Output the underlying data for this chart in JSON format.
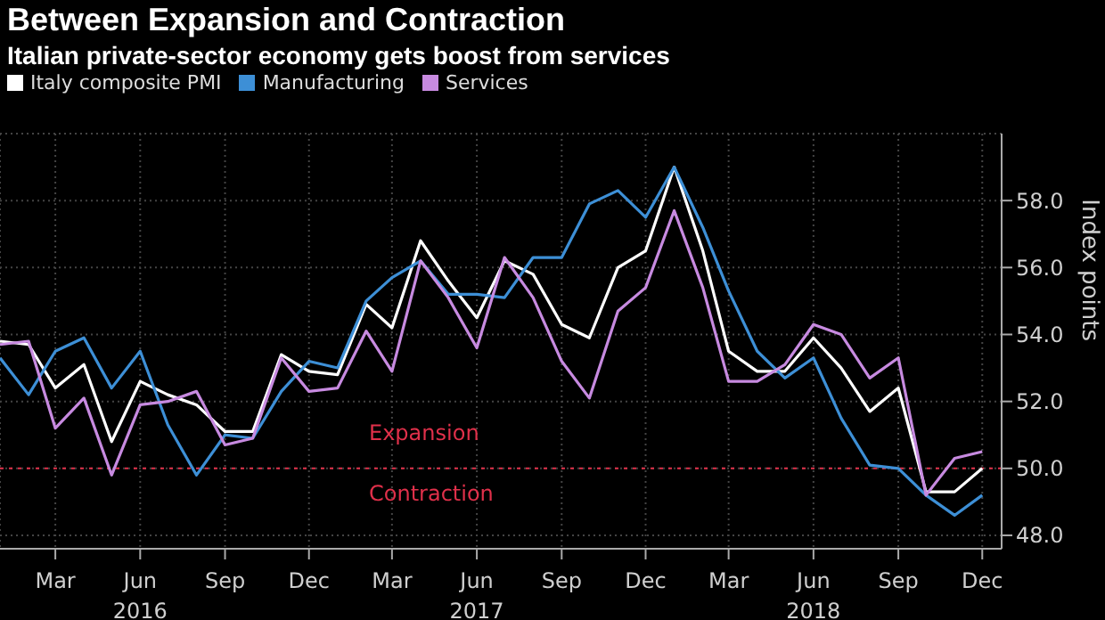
{
  "chart_data": {
    "type": "line",
    "title": "Between Expansion and Contraction",
    "subtitle": "Italian private-sector economy gets boost from services",
    "ylabel": "Index points",
    "x": [
      "2016-01",
      "2016-02",
      "2016-03",
      "2016-04",
      "2016-05",
      "2016-06",
      "2016-07",
      "2016-08",
      "2016-09",
      "2016-10",
      "2016-11",
      "2016-12",
      "2017-01",
      "2017-02",
      "2017-03",
      "2017-04",
      "2017-05",
      "2017-06",
      "2017-07",
      "2017-08",
      "2017-09",
      "2017-10",
      "2017-11",
      "2017-12",
      "2018-01",
      "2018-02",
      "2018-03",
      "2018-04",
      "2018-05",
      "2018-06",
      "2018-07",
      "2018-08",
      "2018-09",
      "2018-10",
      "2018-11",
      "2018-12"
    ],
    "series": [
      {
        "name": "Italy composite PMI",
        "color": "#ffffff",
        "values": [
          53.8,
          53.7,
          52.4,
          53.1,
          50.8,
          52.6,
          52.2,
          51.9,
          51.1,
          51.1,
          53.4,
          52.9,
          52.8,
          54.9,
          54.2,
          56.8,
          55.6,
          54.5,
          56.2,
          55.8,
          54.3,
          53.9,
          56.0,
          56.5,
          59.0,
          56.5,
          53.5,
          52.9,
          52.9,
          53.9,
          53.0,
          51.7,
          52.4,
          49.3,
          49.3,
          50.0
        ]
      },
      {
        "name": "Manufacturing",
        "color": "#3d8fd6",
        "values": [
          53.3,
          52.2,
          53.5,
          53.9,
          52.4,
          53.5,
          51.3,
          49.8,
          51.0,
          50.9,
          52.3,
          53.2,
          53.0,
          55.0,
          55.7,
          56.2,
          55.2,
          55.2,
          55.1,
          56.3,
          56.3,
          57.9,
          58.3,
          57.5,
          59.0,
          57.2,
          55.3,
          53.5,
          52.7,
          53.3,
          51.5,
          50.1,
          50.0,
          49.2,
          48.6,
          49.2
        ]
      },
      {
        "name": "Services",
        "color": "#c78ae0",
        "values": [
          53.7,
          53.8,
          51.2,
          52.1,
          49.8,
          51.9,
          52.0,
          52.3,
          50.7,
          50.9,
          53.3,
          52.3,
          52.4,
          54.1,
          52.9,
          56.2,
          55.1,
          53.6,
          56.3,
          55.1,
          53.2,
          52.1,
          54.7,
          55.4,
          57.7,
          55.4,
          52.6,
          52.6,
          53.1,
          54.3,
          54.0,
          52.7,
          53.3,
          49.2,
          50.3,
          50.5
        ]
      }
    ],
    "xlim": [
      "2016-01-01",
      "2018-12-22"
    ],
    "xticks": [
      {
        "value": "2016-03",
        "label": "Mar"
      },
      {
        "value": "2016-06",
        "label": "Jun\n2016"
      },
      {
        "value": "2016-09",
        "label": "Sep"
      },
      {
        "value": "2016-12",
        "label": "Dec"
      },
      {
        "value": "2017-03",
        "label": "Mar"
      },
      {
        "value": "2017-06",
        "label": "Jun\n2017"
      },
      {
        "value": "2017-09",
        "label": "Sep"
      },
      {
        "value": "2017-12",
        "label": "Dec"
      },
      {
        "value": "2018-03",
        "label": "Mar"
      },
      {
        "value": "2018-06",
        "label": "Jun\n2018"
      },
      {
        "value": "2018-09",
        "label": "Sep"
      },
      {
        "value": "2018-12",
        "label": "Dec"
      }
    ],
    "ylim": [
      47.6,
      60
    ],
    "yticks": [
      {
        "value": 48,
        "label": "48.0"
      },
      {
        "value": 50,
        "label": "50.0"
      },
      {
        "value": 52,
        "label": "52.0"
      },
      {
        "value": 54,
        "label": "54.0"
      },
      {
        "value": 56,
        "label": "56.0"
      },
      {
        "value": 58,
        "label": "58.0"
      }
    ],
    "ref_lines": [
      {
        "axis": "y",
        "value": 50,
        "color": "#e0304a",
        "line_style": "dotted"
      }
    ],
    "annotations": [
      "Expansion",
      "Contraction"
    ],
    "grid": true,
    "legend": "top left",
    "marker": "none",
    "line_style": "solid"
  }
}
